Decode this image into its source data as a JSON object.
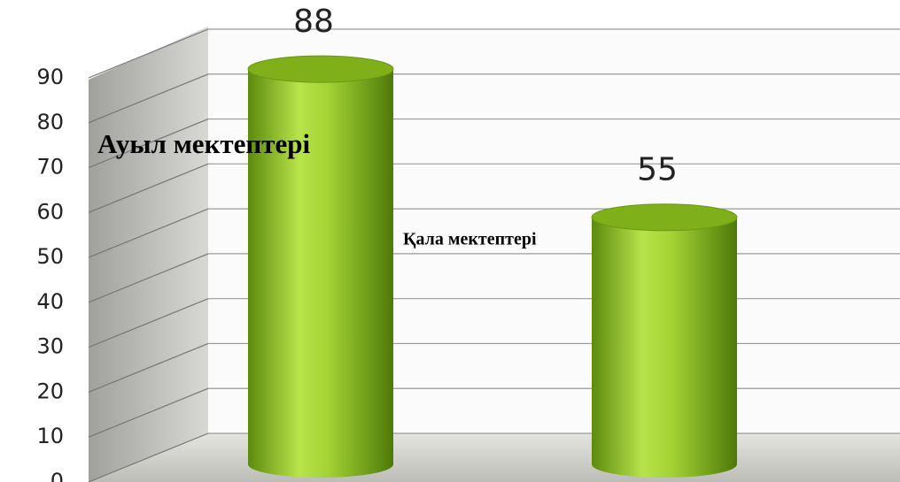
{
  "chart_data": {
    "type": "bar",
    "categories": [
      "Ауыл мектептері",
      "Қала мектептері"
    ],
    "values": [
      88,
      55
    ],
    "color": "#8dc21f",
    "ylim": [
      0,
      90
    ],
    "yticks": [
      0,
      10,
      20,
      30,
      40,
      50,
      60,
      70,
      80,
      90
    ],
    "grid": true
  }
}
